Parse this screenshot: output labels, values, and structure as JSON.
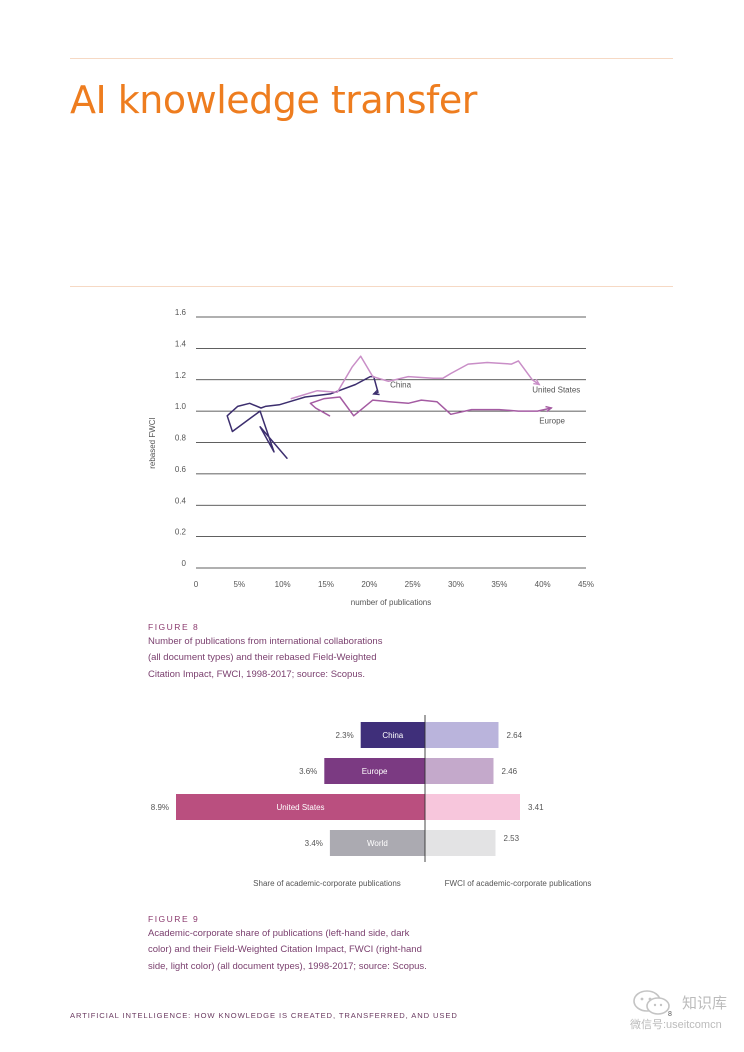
{
  "title": "AI knowledge transfer",
  "figure8": {
    "label": "FIGURE 8",
    "caption_lines": [
      "Number of publications from international collaborations",
      "(all document types) and their rebased Field-Weighted",
      "Citation Impact, FWCI, 1998-2017; source: Scopus."
    ]
  },
  "figure9": {
    "label": "FIGURE 9",
    "caption_lines": [
      "Academic-corporate share of publications (left-hand side, dark",
      "color) and their Field-Weighted Citation Impact, FWCI (right-hand",
      "side, light color) (all document types), 1998-2017; source: Scopus."
    ]
  },
  "footer": {
    "text": "ARTIFICIAL INTELLIGENCE: HOW KNOWLEDGE IS CREATED, TRANSFERRED, AND USED",
    "page_number": "8"
  },
  "watermark": {
    "top": "知识库",
    "bottom": "微信号:useitcomcn"
  },
  "chart_data": [
    {
      "type": "line",
      "xlabel": "number of publications",
      "ylabel": "rebased FWCI",
      "xlim": [
        0,
        45
      ],
      "ylim": [
        0,
        1.6
      ],
      "x_ticks": [
        "0",
        "5%",
        "10%",
        "15%",
        "20%",
        "25%",
        "30%",
        "35%",
        "40%",
        "45%"
      ],
      "y_ticks": [
        "0",
        "0.2",
        "0.4",
        "0.6",
        "0.8",
        "1.0",
        "1.2",
        "1.4",
        "1.6"
      ],
      "grid": "horizontal",
      "series": [
        {
          "name": "China",
          "color": "#3c2e6e",
          "x": [
            10.5,
            7.4,
            9.0,
            7.4,
            6.4,
            4.2,
            3.6,
            4.8,
            6.2,
            7.5,
            8.0,
            9.6,
            10.8,
            12.6,
            15.5,
            18.4,
            20.1,
            20.5,
            21.0,
            20.5
          ],
          "y": [
            0.7,
            0.9,
            0.74,
            1.0,
            0.96,
            0.87,
            0.97,
            1.03,
            1.05,
            1.02,
            1.03,
            1.04,
            1.06,
            1.09,
            1.11,
            1.17,
            1.22,
            1.22,
            1.12,
            1.11
          ]
        },
        {
          "name": "Europe",
          "color": "#a45ba2",
          "x": [
            15.4,
            13.8,
            13.2,
            14.8,
            16.6,
            18.2,
            20.4,
            22.3,
            24.5,
            26.0,
            27.8,
            29.4,
            31.8,
            33.6,
            35.0,
            37.2,
            39.4,
            41.0
          ],
          "y": [
            0.97,
            1.02,
            1.05,
            1.08,
            1.09,
            0.97,
            1.07,
            1.06,
            1.05,
            1.07,
            1.06,
            0.98,
            1.01,
            1.01,
            1.01,
            1.0,
            1.0,
            1.02
          ]
        },
        {
          "name": "United States",
          "color": "#c98ec7",
          "x": [
            11.0,
            14.0,
            16.3,
            18.0,
            19.0,
            20.4,
            22.2,
            24.5,
            27.4,
            28.5,
            29.4,
            31.4,
            33.6,
            36.4,
            37.2,
            38.8,
            39.6
          ],
          "y": [
            1.08,
            1.13,
            1.12,
            1.28,
            1.35,
            1.22,
            1.19,
            1.22,
            1.21,
            1.21,
            1.24,
            1.3,
            1.31,
            1.3,
            1.32,
            1.2,
            1.17
          ]
        }
      ],
      "labels": [
        {
          "text": "China",
          "x": 22.4,
          "y": 1.15
        },
        {
          "text": "United States",
          "x": 38.8,
          "y": 1.12
        },
        {
          "text": "Europe",
          "x": 39.6,
          "y": 0.92
        }
      ]
    },
    {
      "type": "bar",
      "orientation": "horizontal-diverging",
      "categories": [
        "China",
        "Europe",
        "United States",
        "World"
      ],
      "series": [
        {
          "name": "Share of academic-corporate publications",
          "values": [
            2.3,
            3.6,
            8.9,
            3.4
          ],
          "labels": [
            "2.3%",
            "3.6%",
            "8.9%",
            "3.4%"
          ],
          "colors": [
            "#3f2f7a",
            "#7b3a82",
            "#ba4f7f",
            "#abaab1"
          ]
        },
        {
          "name": "FWCI of academic-corporate publications",
          "values": [
            2.64,
            2.46,
            3.41,
            2.53
          ],
          "labels": [
            "2.64",
            "2.46",
            "3.41",
            "2.53"
          ],
          "colors": [
            "#bab4dc",
            "#c4a9cb",
            "#f7c6dc",
            "#e3e3e4"
          ]
        }
      ]
    }
  ]
}
